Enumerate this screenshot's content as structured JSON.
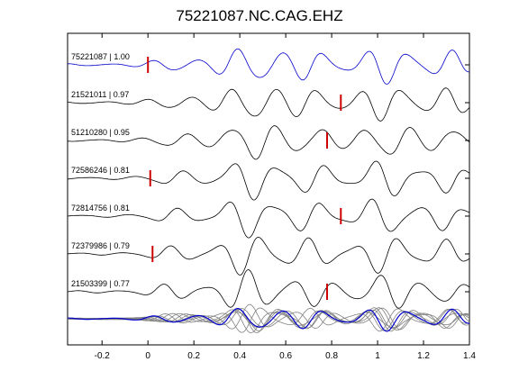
{
  "chart_data": {
    "type": "line",
    "title": "75221087.NC.CAG.EHZ",
    "xlabel": "",
    "ylabel": "",
    "xlim": [
      -0.35,
      1.4
    ],
    "x_ticks": [
      "-0.2",
      "0",
      "0.2",
      "0.4",
      "0.6",
      "0.8",
      "1",
      "1.2",
      "1.4"
    ],
    "x_tick_values": [
      -0.2,
      0,
      0.2,
      0.4,
      0.6,
      0.8,
      1.0,
      1.2,
      1.4
    ],
    "grid": false,
    "series": [
      {
        "name": "75221087 | 1.00",
        "color": "#0000cc",
        "pick_time": 0.0
      },
      {
        "name": "21521011 | 0.97",
        "color": "#000000",
        "pick_time": 0.84
      },
      {
        "name": "51210280 | 0.95",
        "color": "#000000",
        "pick_time": 0.78
      },
      {
        "name": "72586246 | 0.81",
        "color": "#000000",
        "pick_time": 0.01
      },
      {
        "name": "72814756 | 0.81",
        "color": "#000000",
        "pick_time": 0.84
      },
      {
        "name": "72379986 | 0.79",
        "color": "#000000",
        "pick_time": 0.02
      },
      {
        "name": "21503399 | 0.77",
        "color": "#000000",
        "pick_time": 0.78
      }
    ],
    "stack_colors": {
      "master": "#0000cc",
      "others": "#808080"
    },
    "pick_color": "#cc0000"
  }
}
